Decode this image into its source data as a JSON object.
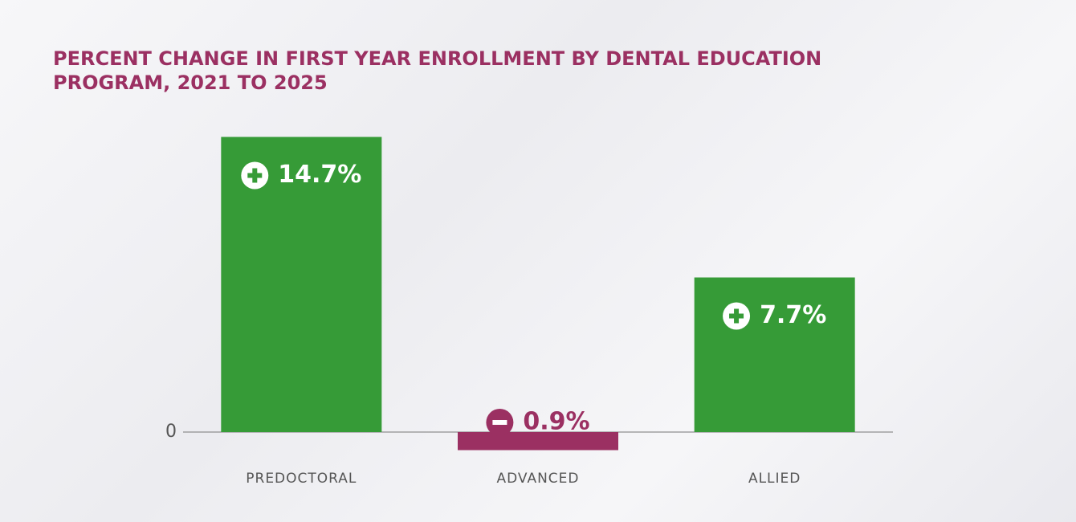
{
  "chart_data": {
    "type": "bar",
    "title": "PERCENT CHANGE IN FIRST YEAR ENROLLMENT BY DENTAL EDUCATION PROGRAM, 2021 TO 2025",
    "categories": [
      "PREDOCTORAL",
      "ADVANCED",
      "ALLIED"
    ],
    "values": [
      14.7,
      -0.9,
      7.7
    ],
    "value_labels": [
      "14.7%",
      "0.9%",
      "7.7%"
    ],
    "colors": [
      "#369b37",
      "#9b3062",
      "#369b37"
    ],
    "ylim": [
      -3,
      16
    ],
    "yticks": [
      0
    ],
    "grid": false
  }
}
